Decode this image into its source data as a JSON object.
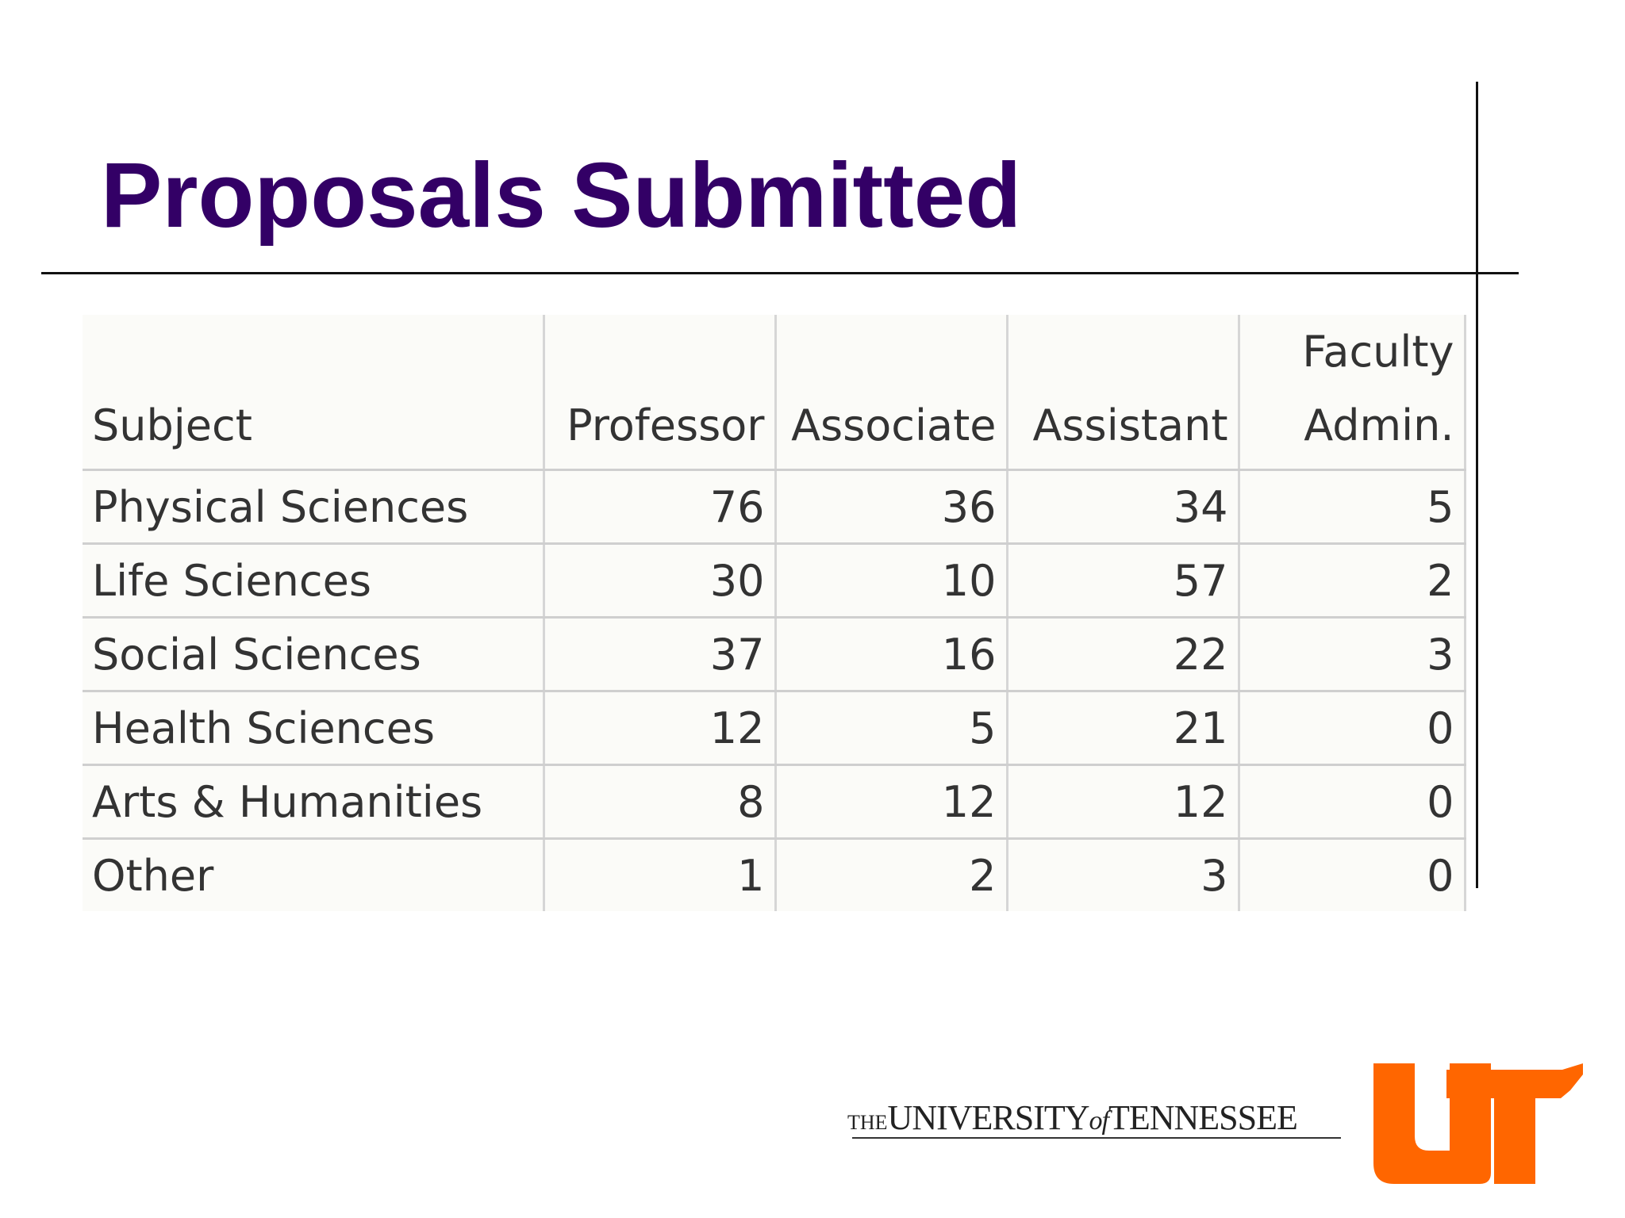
{
  "slide": {
    "title": "Proposals Submitted"
  },
  "table": {
    "headers": {
      "subject": "Subject",
      "professor": "Professor",
      "associate": "Associate",
      "assistant": "Assistant",
      "faculty_admin_line1": "Faculty",
      "faculty_admin_line2": "Admin."
    },
    "rows": [
      {
        "subject": "Physical Sciences",
        "professor": "76",
        "associate": "36",
        "assistant": "34",
        "faculty_admin": "5"
      },
      {
        "subject": "Life Sciences",
        "professor": "30",
        "associate": "10",
        "assistant": "57",
        "faculty_admin": "2"
      },
      {
        "subject": "Social Sciences",
        "professor": "37",
        "associate": "16",
        "assistant": "22",
        "faculty_admin": "3"
      },
      {
        "subject": "Health Sciences",
        "professor": "12",
        "associate": "5",
        "assistant": "21",
        "faculty_admin": "0"
      },
      {
        "subject": "Arts & Humanities",
        "professor": "8",
        "associate": "12",
        "assistant": "12",
        "faculty_admin": "0"
      },
      {
        "subject": "Other",
        "professor": "1",
        "associate": "2",
        "assistant": "3",
        "faculty_admin": "0"
      }
    ]
  },
  "footer": {
    "logo_the": "THE",
    "logo_university": "UNIVERSITY",
    "logo_of": "of",
    "logo_tennessee": "TENNESSEE",
    "logo_mark": "UT",
    "brand_color": "#ff6600"
  }
}
